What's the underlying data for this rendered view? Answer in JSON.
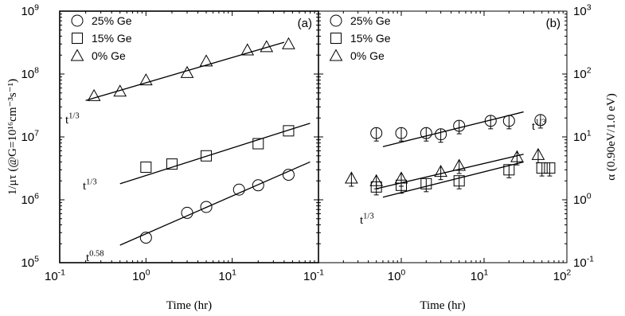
{
  "chart_data": [
    {
      "type": "scatter",
      "panel_label": "(a)",
      "xlabel": "Time (hr)",
      "ylabel": "1/μτ (@G=10¹⁶cm⁻³s⁻¹)",
      "xscale": "log",
      "yscale": "log",
      "xlim": [
        0.1,
        100
      ],
      "ylim": [
        100000,
        1000000000
      ],
      "x_ticks": [
        {
          "m": "10",
          "e": "-1",
          "v": 0.1
        },
        {
          "m": "10",
          "e": "0",
          "v": 1
        },
        {
          "m": "10",
          "e": "1",
          "v": 10
        }
      ],
      "y_ticks": [
        {
          "m": "10",
          "e": "5",
          "v": 100000
        },
        {
          "m": "10",
          "e": "6",
          "v": 1000000
        },
        {
          "m": "10",
          "e": "7",
          "v": 10000000
        },
        {
          "m": "10",
          "e": "8",
          "v": 100000000
        },
        {
          "m": "10",
          "e": "9",
          "v": 1000000000
        }
      ],
      "legend_position": "top-left",
      "series": [
        {
          "name": "25% Ge",
          "marker": "circle",
          "points": [
            [
              1,
              250000
            ],
            [
              3,
              620000
            ],
            [
              5,
              770000
            ],
            [
              12,
              1450000
            ],
            [
              20,
              1700000
            ],
            [
              45,
              2500000
            ]
          ],
          "fit": {
            "x": [
              0.5,
              80
            ],
            "y": [
              190000,
              4000000
            ],
            "label": "t",
            "exponent": "0.58"
          }
        },
        {
          "name": "15% Ge",
          "marker": "square",
          "points": [
            [
              1,
              3300000
            ],
            [
              2,
              3700000
            ],
            [
              5,
              5000000
            ],
            [
              20,
              7800000
            ],
            [
              45,
              12500000
            ]
          ],
          "fit": {
            "x": [
              0.5,
              80
            ],
            "y": [
              1800000,
              16500000
            ],
            "label": "t",
            "exponent": "1/3"
          }
        },
        {
          "name": "0% Ge",
          "marker": "triangle",
          "points": [
            [
              0.25,
              45000000
            ],
            [
              0.5,
              53000000
            ],
            [
              1,
              80000000
            ],
            [
              3,
              105000000
            ],
            [
              5,
              160000000
            ],
            [
              15,
              240000000
            ],
            [
              25,
              270000000
            ],
            [
              45,
              300000000
            ]
          ],
          "fit": {
            "x": [
              0.2,
              40
            ],
            "y": [
              38000000,
              320000000
            ],
            "label": "t",
            "exponent": "1/3"
          }
        }
      ]
    },
    {
      "type": "scatter",
      "panel_label": "(b)",
      "xlabel": "Time (hr)",
      "ylabel": "α (0.90eV/1.0 eV)",
      "xscale": "log",
      "yscale": "log",
      "xlim": [
        0.1,
        100
      ],
      "ylim": [
        0.1,
        1000
      ],
      "x_ticks": [
        {
          "m": "10",
          "e": "-1",
          "v": 0.1
        },
        {
          "m": "10",
          "e": "0",
          "v": 1
        },
        {
          "m": "10",
          "e": "1",
          "v": 10
        },
        {
          "m": "10",
          "e": "2",
          "v": 100
        }
      ],
      "y_ticks": [
        {
          "m": "10",
          "e": "-1",
          "v": 0.1
        },
        {
          "m": "10",
          "e": "0",
          "v": 1
        },
        {
          "m": "10",
          "e": "1",
          "v": 10
        },
        {
          "m": "10",
          "e": "2",
          "v": 100
        },
        {
          "m": "10",
          "e": "3",
          "v": 1000
        }
      ],
      "legend_position": "top-left",
      "series": [
        {
          "name": "25% Ge",
          "marker": "circle",
          "points": [
            [
              0.5,
              11.5
            ],
            [
              1,
              11.5
            ],
            [
              2,
              11.5
            ],
            [
              3,
              11
            ],
            [
              5,
              15
            ],
            [
              12,
              18
            ],
            [
              20,
              18
            ],
            [
              48,
              18.5
            ]
          ],
          "fit": {
            "x": [
              0.6,
              30
            ],
            "y": [
              7,
              25
            ],
            "label": "t",
            "exponent": "1/3"
          }
        },
        {
          "name": "15% Ge",
          "marker": "square",
          "points": [
            [
              0.5,
              1.6
            ],
            [
              1,
              1.7
            ],
            [
              2,
              1.8
            ],
            [
              5,
              2.0
            ],
            [
              20,
              3.0
            ],
            [
              50,
              3.2
            ],
            [
              62,
              3.2
            ]
          ],
          "fit": {
            "x": [
              0.6,
              30
            ],
            "y": [
              1.1,
              4.0
            ],
            "label": "t",
            "exponent": "1/3"
          }
        },
        {
          "name": "0% Ge",
          "marker": "triangle",
          "points": [
            [
              0.25,
              2.2
            ],
            [
              0.5,
              2.0
            ],
            [
              1,
              2.2
            ],
            [
              3,
              2.8
            ],
            [
              5,
              3.5
            ],
            [
              25,
              4.8
            ],
            [
              45,
              5.2
            ]
          ],
          "fit": {
            "x": [
              0.5,
              30
            ],
            "y": [
              1.5,
              5.3
            ],
            "label": "t",
            "exponent": "1/3"
          }
        }
      ]
    }
  ]
}
